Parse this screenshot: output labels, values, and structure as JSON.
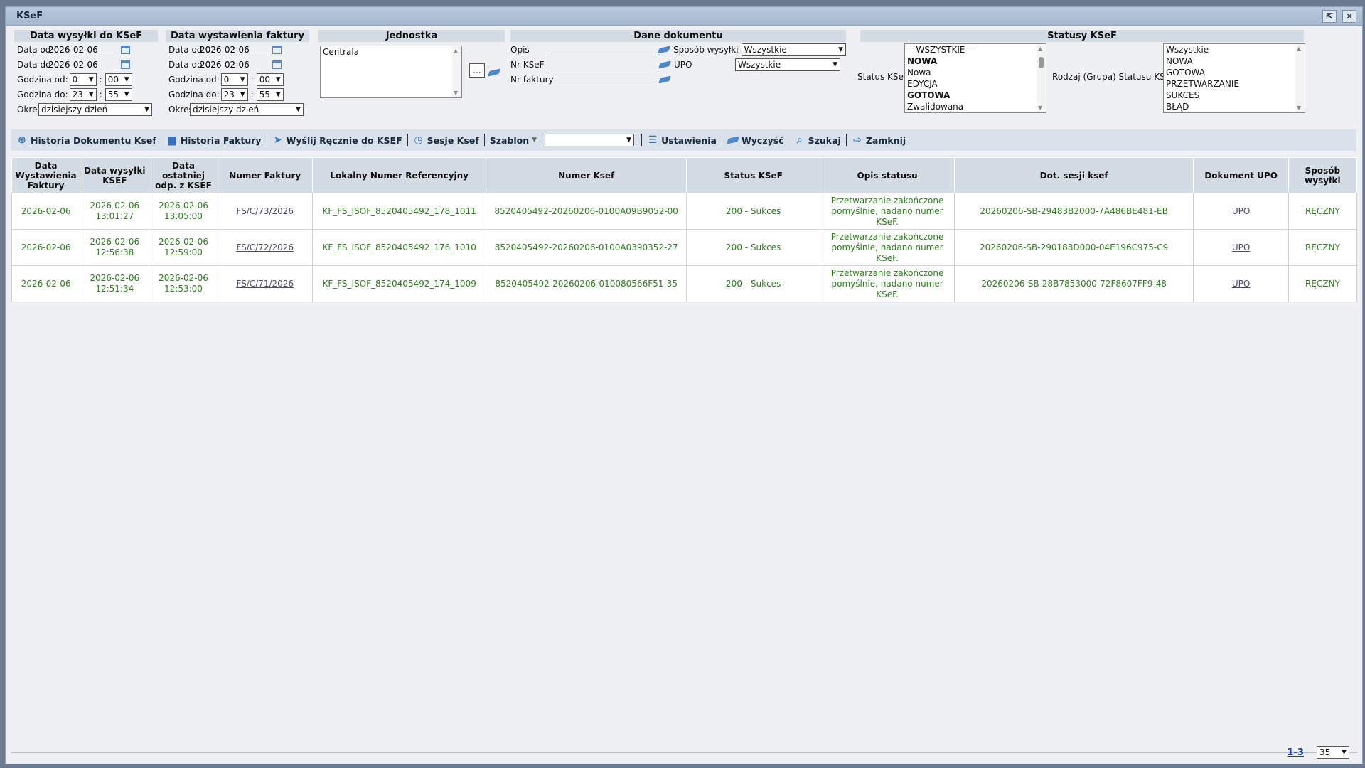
{
  "window": {
    "title": "KSeF"
  },
  "send_date": {
    "heading": "Data wysyłki do KSeF",
    "from_label": "Data od",
    "from_value": "2026-02-06",
    "to_label": "Data do",
    "to_value": "2026-02-06",
    "time_from_label": "Godzina od:",
    "time_from_h": "0",
    "time_from_m": "00",
    "time_to_label": "Godzina do:",
    "time_to_h": "23",
    "time_to_m": "55",
    "period_label": "Okres",
    "period_value": "dzisiejszy dzień"
  },
  "issue_date": {
    "heading": "Data wystawienia faktury",
    "from_label": "Data od",
    "from_value": "2026-02-06",
    "to_label": "Data do",
    "to_value": "2026-02-06",
    "time_from_label": "Godzina od:",
    "time_from_h": "0",
    "time_from_m": "00",
    "time_to_label": "Godzina do:",
    "time_to_h": "23",
    "time_to_m": "55",
    "period_label": "Okres",
    "period_value": "dzisiejszy dzień"
  },
  "unit": {
    "heading": "Jednostka",
    "items": [
      "Centrala"
    ],
    "browse_label": "..."
  },
  "doc": {
    "heading": "Dane dokumentu",
    "desc_label": "Opis",
    "ksef_no_label": "Nr KSeF",
    "invoice_no_label": "Nr faktury",
    "send_method_label": "Sposób wysyłki",
    "send_method_value": "Wszystkie",
    "upo_label": "UPO",
    "upo_value": "Wszystkie"
  },
  "statuses": {
    "heading": "Statusy KSeF",
    "status_label": "Status KSeF",
    "status_items": [
      "-- WSZYSTKIE --",
      "NOWA",
      "Nowa",
      "EDYCJA",
      "GOTOWA",
      "Zwalidowana"
    ],
    "group_label": "Rodzaj (Grupa) Statusu KSeF",
    "group_items": [
      "Wszystkie",
      "NOWA",
      "GOTOWA",
      "PRZETWARZANIE",
      "SUKCES",
      "BŁĄD"
    ]
  },
  "toolbar": {
    "history_doc": "Historia Dokumentu Ksef",
    "history_inv": "Historia Faktury",
    "send_manual": "Wyślij Ręcznie do KSEF",
    "sessions": "Sesje Ksef",
    "template": "Szablon",
    "template_value": "",
    "settings": "Ustawienia",
    "clear": "Wyczyść",
    "search": "Szukaj",
    "close": "Zamknij"
  },
  "table": {
    "headers": [
      "Data Wystawienia Faktury",
      "Data wysyłki KSEF",
      "Data ostatniej odp. z KSEF",
      "Numer Faktury",
      "Lokalny Numer Referencyjny",
      "Numer Ksef",
      "Status KSeF",
      "Opis statusu",
      "Dot. sesji ksef",
      "Dokument UPO",
      "Sposób wysyłki"
    ],
    "rows": [
      {
        "issue": "2026-02-06",
        "sent": "2026-02-06 13:01:27",
        "last": "2026-02-06 13:05:00",
        "num": "FS/C/73/2026",
        "lnr": "KF_FS_ISOF_8520405492_178_1011",
        "ksef": "8520405492-20260206-0100A09B9052-00",
        "status": "200 - Sukces",
        "desc": "Przetwarzanie zakończone pomyślnie, nadano numer KSeF.",
        "session": "20260206-SB-29483B2000-7A486BE481-EB",
        "upo": "UPO",
        "method": "RĘCZNY"
      },
      {
        "issue": "2026-02-06",
        "sent": "2026-02-06 12:56:38",
        "last": "2026-02-06 12:59:00",
        "num": "FS/C/72/2026",
        "lnr": "KF_FS_ISOF_8520405492_176_1010",
        "ksef": "8520405492-20260206-0100A0390352-27",
        "status": "200 - Sukces",
        "desc": "Przetwarzanie zakończone pomyślnie, nadano numer KSeF.",
        "session": "20260206-SB-290188D000-04E196C975-C9",
        "upo": "UPO",
        "method": "RĘCZNY"
      },
      {
        "issue": "2026-02-06",
        "sent": "2026-02-06 12:51:34",
        "last": "2026-02-06 12:53:00",
        "num": "FS/C/71/2026",
        "lnr": "KF_FS_ISOF_8520405492_174_1009",
        "ksef": "8520405492-20260206-010080566F51-35",
        "status": "200 - Sukces",
        "desc": "Przetwarzanie zakończone pomyślnie, nadano numer KSeF.",
        "session": "20260206-SB-28B7853000-72F8607FF9-48",
        "upo": "UPO",
        "method": "RĘCZNY"
      }
    ]
  },
  "pager": {
    "range": "1-3",
    "page_size": "35"
  }
}
